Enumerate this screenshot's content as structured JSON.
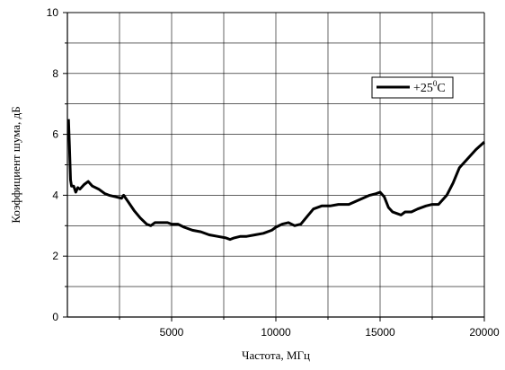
{
  "chart_data": {
    "type": "line",
    "xlabel": "Частота, МГц",
    "ylabel": "Коэффициент шума, дБ",
    "xlim": [
      0,
      20000
    ],
    "ylim": [
      0,
      10
    ],
    "x_ticks": [
      5000,
      10000,
      15000,
      20000
    ],
    "x_tick_labels": [
      "5000",
      "10000",
      "15000",
      "20000"
    ],
    "x_minor_ticks": [
      2500,
      7500,
      12500,
      17500
    ],
    "y_ticks": [
      0,
      2,
      4,
      6,
      8,
      10
    ],
    "y_tick_labels": [
      "0",
      "2",
      "4",
      "6",
      "8",
      "10"
    ],
    "y_minor_ticks": [
      1,
      3,
      5,
      7,
      9
    ],
    "grid": true,
    "legend": {
      "position": "top-right",
      "series_label": "+25",
      "superscript": "0",
      "unit_suffix": "C"
    },
    "series": [
      {
        "name": "+25°C",
        "color": "#000000",
        "x": [
          50,
          100,
          150,
          200,
          300,
          400,
          500,
          600,
          800,
          1000,
          1200,
          1500,
          1800,
          2000,
          2300,
          2600,
          2700,
          2900,
          3200,
          3500,
          3800,
          4000,
          4200,
          4500,
          4800,
          5000,
          5300,
          5600,
          6000,
          6400,
          6800,
          7200,
          7600,
          7800,
          8000,
          8300,
          8600,
          9000,
          9400,
          9800,
          10000,
          10300,
          10600,
          10900,
          11200,
          11500,
          11800,
          12200,
          12600,
          13000,
          13500,
          14000,
          14500,
          14800,
          15000,
          15200,
          15400,
          15600,
          15800,
          16000,
          16200,
          16500,
          16800,
          17200,
          17500,
          17800,
          18200,
          18500,
          18800,
          19200,
          19600,
          20000
        ],
        "values": [
          6.5,
          5.6,
          4.5,
          4.3,
          4.3,
          4.1,
          4.25,
          4.2,
          4.35,
          4.45,
          4.3,
          4.2,
          4.05,
          4.0,
          3.95,
          3.9,
          4.0,
          3.8,
          3.5,
          3.25,
          3.05,
          3.0,
          3.1,
          3.1,
          3.1,
          3.05,
          3.05,
          2.95,
          2.85,
          2.8,
          2.7,
          2.65,
          2.6,
          2.55,
          2.6,
          2.65,
          2.65,
          2.7,
          2.75,
          2.85,
          2.95,
          3.05,
          3.1,
          3.0,
          3.05,
          3.3,
          3.55,
          3.65,
          3.65,
          3.7,
          3.7,
          3.85,
          4.0,
          4.05,
          4.1,
          3.95,
          3.6,
          3.45,
          3.4,
          3.35,
          3.45,
          3.45,
          3.55,
          3.65,
          3.7,
          3.7,
          4.0,
          4.4,
          4.9,
          5.2,
          5.5,
          5.75
        ]
      }
    ]
  }
}
